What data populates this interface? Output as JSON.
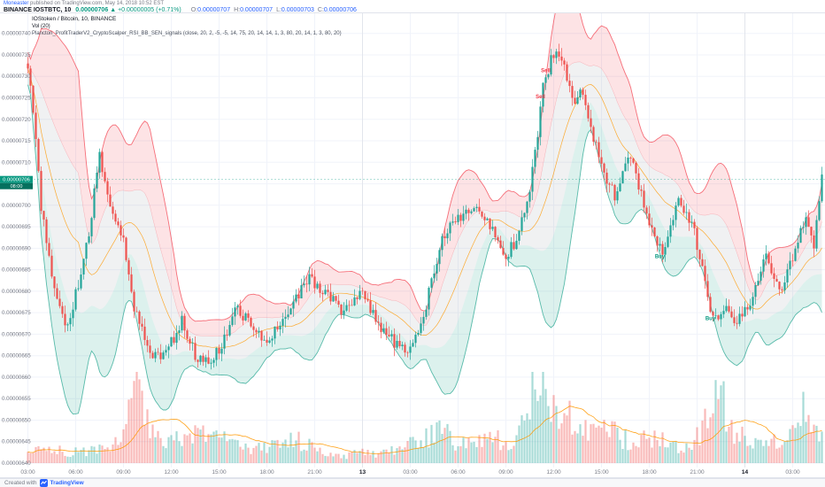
{
  "header": {
    "author": "Moneaster",
    "published": " published on TradingView.com, May 14, 2018 10:52 EST",
    "symbol": "BINANCE IOSTBTC, 10",
    "last_price": "0.00000706",
    "change": "▲ +0.00000005 (+0.71%)",
    "ohlc": {
      "o_key": "O:",
      "o": "0.00000707",
      "h_key": "H:",
      "h": "0.00000707",
      "l_key": "L:",
      "l": "0.00000703",
      "c_key": "C:",
      "c": "0.00000706"
    }
  },
  "legend": {
    "title": "IOStoken / Bitcoin, 10, BINANCE",
    "volume": "Vol (20)",
    "indicator": "Plancton_ProfitTraderV2_CryptoScalper_RSI_BB_SEN_signals (close, 20, 2, -5, -5, 14, 75, 20, 14, 14, 1, 3, 80, 20, 14, 1, 3, 80, 20)"
  },
  "footer": {
    "created_with": "Created with",
    "brand": "TradingView"
  },
  "chart_data": {
    "type": "candlestick",
    "title": "IOStoken / Bitcoin, 10, BINANCE",
    "symbol": "IOSTBTC",
    "exchange": "BINANCE",
    "interval_minutes": 10,
    "bars_total": 300,
    "price_scale_factor": 1e-08,
    "overlays": [
      "Bollinger-band style scalper zones (red upper / gray mid / green lower)",
      "orange basis MA",
      "volume histogram with orange MA(20)"
    ],
    "y_axis": {
      "internal_max": 742,
      "internal_min": 640,
      "label_start_internal": 740,
      "label_step_internal": 5,
      "labels": [
        "0.00000740",
        "0.00000735",
        "0.00000730",
        "0.00000725",
        "0.00000720",
        "0.00000715",
        "0.00000710",
        "0.00000705",
        "0.00000700",
        "0.00000695",
        "0.00000690",
        "0.00000685",
        "0.00000680",
        "0.00000675",
        "0.00000670",
        "0.00000665",
        "0.00000660",
        "0.00000655",
        "0.00000650",
        "0.00000645",
        "0.00000640"
      ]
    },
    "x_axis": {
      "ticks": [
        {
          "label": "03:00",
          "bar": 0
        },
        {
          "label": "06:00",
          "bar": 18
        },
        {
          "label": "09:00",
          "bar": 36
        },
        {
          "label": "12:00",
          "bar": 54
        },
        {
          "label": "15:00",
          "bar": 72
        },
        {
          "label": "18:00",
          "bar": 90
        },
        {
          "label": "21:00",
          "bar": 108
        },
        {
          "label": "13",
          "bar": 126,
          "major": true
        },
        {
          "label": "03:00",
          "bar": 144
        },
        {
          "label": "06:00",
          "bar": 162
        },
        {
          "label": "09:00",
          "bar": 180
        },
        {
          "label": "12:00",
          "bar": 198
        },
        {
          "label": "15:00",
          "bar": 216
        },
        {
          "label": "18:00",
          "bar": 234
        },
        {
          "label": "21:00",
          "bar": 252
        },
        {
          "label": "14",
          "bar": 270,
          "major": true
        },
        {
          "label": "03:00",
          "bar": 288
        }
      ]
    },
    "last": {
      "open": "0.00000707",
      "high": "0.00000707",
      "low": "0.00000703",
      "close": "0.00000706",
      "close_internal": 706,
      "change": "+0.00000005",
      "change_pct": "+0.71%",
      "countdown": "08:00"
    },
    "price_path": [
      [
        0,
        731
      ],
      [
        2,
        722
      ],
      [
        5,
        700
      ],
      [
        9,
        683
      ],
      [
        14,
        671
      ],
      [
        18,
        679
      ],
      [
        22,
        690
      ],
      [
        27,
        711
      ],
      [
        30,
        703
      ],
      [
        33,
        697
      ],
      [
        36,
        691
      ],
      [
        40,
        676
      ],
      [
        45,
        667
      ],
      [
        50,
        664
      ],
      [
        54,
        668
      ],
      [
        58,
        673
      ],
      [
        63,
        665
      ],
      [
        68,
        663
      ],
      [
        73,
        667
      ],
      [
        78,
        676
      ],
      [
        84,
        673
      ],
      [
        90,
        668
      ],
      [
        95,
        672
      ],
      [
        100,
        678
      ],
      [
        106,
        683
      ],
      [
        112,
        680
      ],
      [
        118,
        676
      ],
      [
        126,
        679
      ],
      [
        132,
        672
      ],
      [
        138,
        668
      ],
      [
        144,
        666
      ],
      [
        150,
        677
      ],
      [
        156,
        692
      ],
      [
        162,
        697
      ],
      [
        168,
        700
      ],
      [
        174,
        695
      ],
      [
        180,
        688
      ],
      [
        184,
        692
      ],
      [
        188,
        700
      ],
      [
        191,
        712
      ],
      [
        194,
        727
      ],
      [
        197,
        734
      ],
      [
        200,
        736
      ],
      [
        203,
        730
      ],
      [
        206,
        724
      ],
      [
        209,
        727
      ],
      [
        212,
        718
      ],
      [
        215,
        712
      ],
      [
        218,
        706
      ],
      [
        221,
        702
      ],
      [
        224,
        707
      ],
      [
        227,
        712
      ],
      [
        230,
        705
      ],
      [
        233,
        698
      ],
      [
        236,
        692
      ],
      [
        239,
        689
      ],
      [
        242,
        695
      ],
      [
        245,
        701
      ],
      [
        248,
        698
      ],
      [
        251,
        694
      ],
      [
        254,
        685
      ],
      [
        257,
        675
      ],
      [
        260,
        672
      ],
      [
        263,
        676
      ],
      [
        266,
        672
      ],
      [
        269,
        674
      ],
      [
        272,
        678
      ],
      [
        275,
        682
      ],
      [
        278,
        688
      ],
      [
        281,
        684
      ],
      [
        284,
        680
      ],
      [
        287,
        686
      ],
      [
        290,
        692
      ],
      [
        293,
        696
      ],
      [
        296,
        691
      ],
      [
        299,
        706
      ]
    ],
    "volume_path": [
      [
        0,
        0.1
      ],
      [
        8,
        0.16
      ],
      [
        16,
        0.12
      ],
      [
        24,
        0.14
      ],
      [
        32,
        0.18
      ],
      [
        38,
        0.55
      ],
      [
        41,
        0.85
      ],
      [
        44,
        0.5
      ],
      [
        48,
        0.3
      ],
      [
        54,
        0.22
      ],
      [
        60,
        0.3
      ],
      [
        66,
        0.35
      ],
      [
        72,
        0.28
      ],
      [
        78,
        0.2
      ],
      [
        84,
        0.14
      ],
      [
        90,
        0.18
      ],
      [
        96,
        0.22
      ],
      [
        102,
        0.25
      ],
      [
        108,
        0.15
      ],
      [
        114,
        0.1
      ],
      [
        120,
        0.08
      ],
      [
        126,
        0.12
      ],
      [
        132,
        0.1
      ],
      [
        138,
        0.16
      ],
      [
        144,
        0.22
      ],
      [
        150,
        0.3
      ],
      [
        156,
        0.35
      ],
      [
        162,
        0.22
      ],
      [
        168,
        0.2
      ],
      [
        174,
        0.28
      ],
      [
        180,
        0.22
      ],
      [
        184,
        0.3
      ],
      [
        188,
        0.5
      ],
      [
        192,
        1.0
      ],
      [
        195,
        0.8
      ],
      [
        198,
        0.6
      ],
      [
        202,
        0.45
      ],
      [
        206,
        0.5
      ],
      [
        210,
        0.35
      ],
      [
        214,
        0.28
      ],
      [
        218,
        0.38
      ],
      [
        222,
        0.3
      ],
      [
        226,
        0.25
      ],
      [
        230,
        0.3
      ],
      [
        234,
        0.22
      ],
      [
        238,
        0.28
      ],
      [
        242,
        0.2
      ],
      [
        246,
        0.18
      ],
      [
        250,
        0.25
      ],
      [
        254,
        0.35
      ],
      [
        258,
        0.62
      ],
      [
        261,
        0.78
      ],
      [
        264,
        0.45
      ],
      [
        268,
        0.3
      ],
      [
        272,
        0.22
      ],
      [
        276,
        0.18
      ],
      [
        280,
        0.25
      ],
      [
        284,
        0.2
      ],
      [
        288,
        0.35
      ],
      [
        291,
        0.6
      ],
      [
        294,
        0.45
      ],
      [
        297,
        0.3
      ],
      [
        299,
        0.25
      ]
    ],
    "signals": [
      {
        "bar": 193,
        "label": "Sell",
        "type": "sell"
      },
      {
        "bar": 195,
        "label": "Sell",
        "type": "sell"
      },
      {
        "bar": 238,
        "label": "Buy",
        "type": "buy"
      },
      {
        "bar": 257,
        "label": "Buy",
        "type": "buy"
      }
    ],
    "colors": {
      "up": "#26a69a",
      "down": "#ef5350",
      "band_upper": "#f23645",
      "band_lower": "#089981",
      "basis": "#ff9800",
      "price_tag": "#089981",
      "link": "#2962ff"
    }
  }
}
